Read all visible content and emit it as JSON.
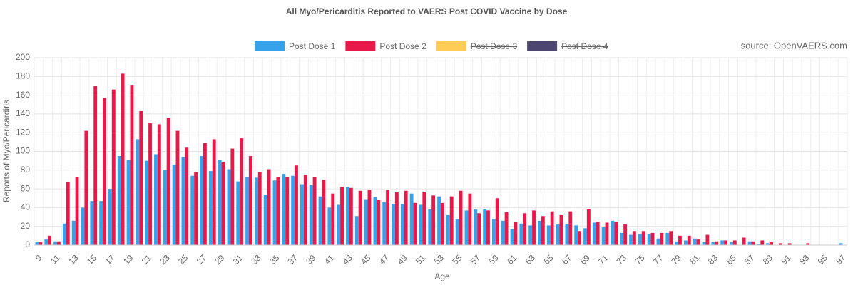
{
  "chart_data": {
    "type": "bar",
    "title": "All Myo/Pericarditis Reported to VAERS Post COVID Vaccine by Dose",
    "annotation": "source: OpenVAERS.com",
    "x_label": "Age",
    "y_label": "Reports of Myo/Pericarditis",
    "categories": [
      "9",
      null,
      "11",
      null,
      "13",
      null,
      "15",
      null,
      "17",
      null,
      "19",
      null,
      "21",
      null,
      "23",
      null,
      "25",
      null,
      "27",
      null,
      "29",
      null,
      "31",
      null,
      "33",
      null,
      "35",
      null,
      "37",
      null,
      "39",
      null,
      "41",
      null,
      "43",
      null,
      "45",
      null,
      "47",
      null,
      "49",
      null,
      "51",
      null,
      "53",
      null,
      "55",
      null,
      "57",
      null,
      "59",
      null,
      "61",
      null,
      "63",
      null,
      "65",
      null,
      "67",
      null,
      "69",
      null,
      "71",
      null,
      "73",
      null,
      "75",
      null,
      "77",
      null,
      "79",
      null,
      "81",
      null,
      "83",
      null,
      "85",
      null,
      "87",
      null,
      "89",
      null,
      "91",
      null,
      "93",
      null,
      "95",
      null,
      "97"
    ],
    "series": [
      {
        "name": "Post Dose 1",
        "color": "#36a2eb",
        "values": [
          3,
          6,
          4,
          23,
          26,
          40,
          47,
          47,
          60,
          95,
          91,
          113,
          90,
          97,
          80,
          86,
          94,
          74,
          95,
          79,
          91,
          81,
          68,
          73,
          72,
          54,
          69,
          76,
          74,
          65,
          64,
          52,
          40,
          43,
          62,
          31,
          49,
          51,
          46,
          44,
          44,
          55,
          43,
          38,
          52,
          32,
          28,
          37,
          38,
          38,
          28,
          26,
          17,
          23,
          21,
          26,
          21,
          22,
          22,
          21,
          18,
          24,
          19,
          26,
          13,
          11,
          12,
          12,
          7,
          13,
          4,
          5,
          7,
          3,
          3,
          5,
          3,
          0,
          4,
          1,
          2,
          0,
          0,
          0,
          0,
          0,
          0,
          0,
          2
        ]
      },
      {
        "name": "Post Dose 2",
        "color": "#e8194a",
        "values": [
          3,
          10,
          4,
          67,
          73,
          122,
          170,
          157,
          166,
          183,
          171,
          143,
          130,
          129,
          136,
          122,
          104,
          78,
          109,
          113,
          89,
          103,
          114,
          95,
          78,
          81,
          73,
          73,
          85,
          75,
          73,
          70,
          55,
          62,
          61,
          58,
          59,
          48,
          59,
          57,
          58,
          45,
          57,
          53,
          45,
          52,
          58,
          55,
          34,
          37,
          50,
          35,
          25,
          34,
          37,
          31,
          36,
          32,
          36,
          15,
          38,
          25,
          24,
          25,
          22,
          15,
          15,
          13,
          13,
          15,
          10,
          10,
          6,
          11,
          4,
          5,
          5,
          8,
          4,
          5,
          3,
          2,
          2,
          0,
          2,
          0,
          0,
          0,
          0
        ]
      },
      {
        "name": "Post Dose 3",
        "color": "#ffcd56",
        "hidden": true
      },
      {
        "name": "Post Dose 4",
        "color": "#4d4670",
        "hidden": true
      }
    ],
    "ylim": [
      0,
      200
    ],
    "yticks": [
      0,
      20,
      40,
      60,
      80,
      100,
      120,
      140,
      160,
      180,
      200
    ],
    "grid": true,
    "legend": "top"
  }
}
